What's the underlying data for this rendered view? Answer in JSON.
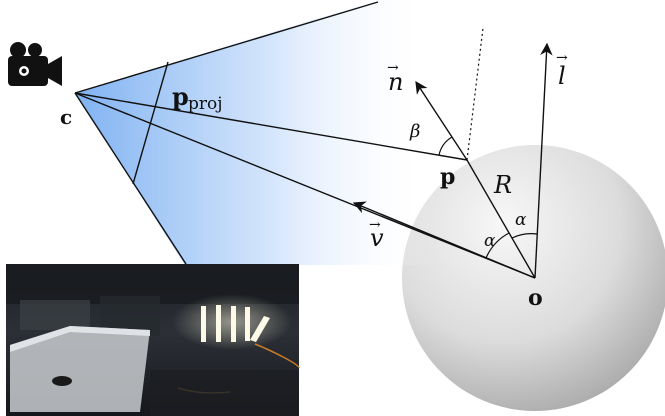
{
  "labels": {
    "camera": "c",
    "p_proj_main": "p",
    "p_proj_sub": "proj",
    "point": "p",
    "normal": "n",
    "light": "l",
    "view": "v",
    "origin": "o",
    "radius": "R",
    "beta": "β",
    "alpha_1": "α",
    "alpha_2": "α",
    "vec_arrow": "→"
  },
  "icons": {
    "camera": "video-camera-icon"
  },
  "colors": {
    "frustum_fill_start": "#7fb2f2",
    "frustum_fill_end": "#ffffff",
    "sphere_light": "#f4f4f4",
    "sphere_dark": "#a9a9a9",
    "line": "#111111"
  },
  "inset": {
    "description_tag": "environment-panorama-photo"
  }
}
